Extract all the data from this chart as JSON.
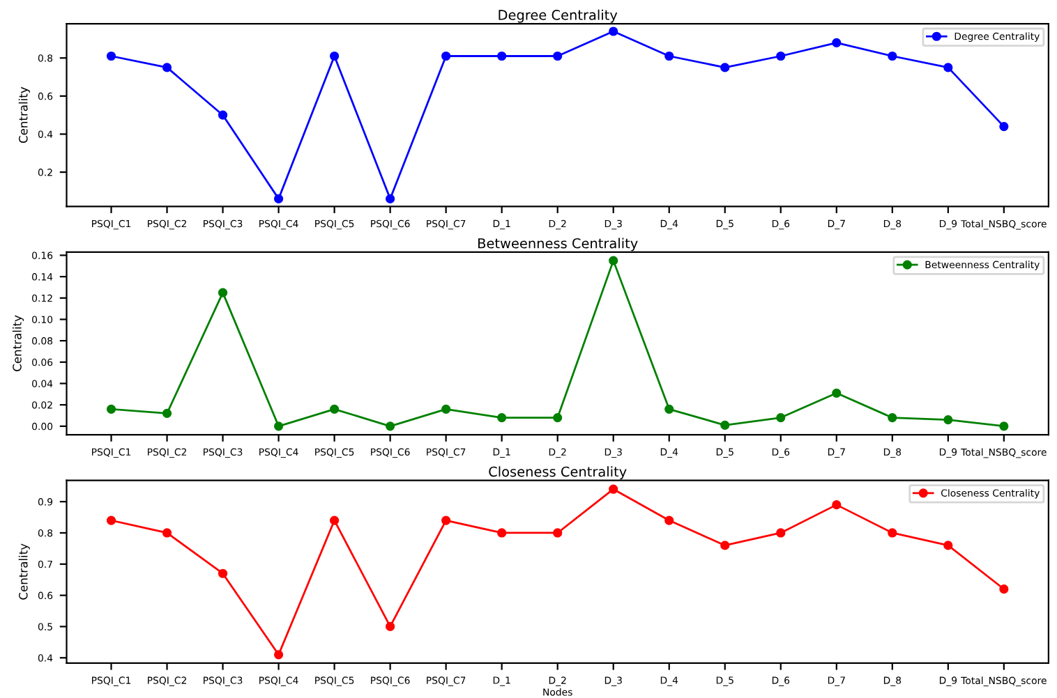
{
  "chart_data": [
    {
      "type": "line",
      "title": "Degree Centrality",
      "ylabel": "Centrality",
      "categories": [
        "PSQI_C1",
        "PSQI_C2",
        "PSQI_C3",
        "PSQI_C4",
        "PSQI_C5",
        "PSQI_C6",
        "PSQI_C7",
        "D_1",
        "D_2",
        "D_3",
        "D_4",
        "D_5",
        "D_6",
        "D_7",
        "D_8",
        "D_9",
        "Total_NSBQ_score"
      ],
      "series": [
        {
          "name": "Degree Centrality",
          "color": "#0000ff",
          "values": [
            0.81,
            0.75,
            0.5,
            0.06,
            0.81,
            0.06,
            0.81,
            0.81,
            0.81,
            0.94,
            0.81,
            0.75,
            0.81,
            0.88,
            0.81,
            0.75,
            0.44
          ]
        }
      ],
      "ylim": [
        0.02,
        0.98
      ],
      "yticks": [
        0.2,
        0.4,
        0.6,
        0.8
      ],
      "marker": "circle",
      "legend": "top right",
      "grid": false
    },
    {
      "type": "line",
      "title": "Betweenness Centrality",
      "ylabel": "Centrality",
      "categories": [
        "PSQI_C1",
        "PSQI_C2",
        "PSQI_C3",
        "PSQI_C4",
        "PSQI_C5",
        "PSQI_C6",
        "PSQI_C7",
        "D_1",
        "D_2",
        "D_3",
        "D_4",
        "D_5",
        "D_6",
        "D_7",
        "D_8",
        "D_9",
        "Total_NSBQ_score"
      ],
      "series": [
        {
          "name": "Betweenness Centrality",
          "color": "#008000",
          "values": [
            0.016,
            0.012,
            0.125,
            0.0,
            0.016,
            0.0,
            0.016,
            0.008,
            0.008,
            0.155,
            0.016,
            0.001,
            0.008,
            0.031,
            0.008,
            0.006,
            0.0
          ]
        }
      ],
      "ylim": [
        -0.008,
        0.163
      ],
      "yticks": [
        {
          "value": 0,
          "label": "0.00"
        },
        0.02,
        0.04,
        0.06,
        0.08,
        {
          "value": 0.1,
          "label": "0.10"
        },
        0.12,
        0.14,
        0.16
      ],
      "marker": "circle",
      "legend": "top right",
      "grid": false
    },
    {
      "type": "line",
      "title": "Closeness Centrality",
      "xlabel": "Nodes",
      "ylabel": "Centrality",
      "categories": [
        "PSQI_C1",
        "PSQI_C2",
        "PSQI_C3",
        "PSQI_C4",
        "PSQI_C5",
        "PSQI_C6",
        "PSQI_C7",
        "D_1",
        "D_2",
        "D_3",
        "D_4",
        "D_5",
        "D_6",
        "D_7",
        "D_8",
        "D_9",
        "Total_NSBQ_score"
      ],
      "series": [
        {
          "name": "Closeness Centrality",
          "color": "#ff0000",
          "values": [
            0.84,
            0.8,
            0.67,
            0.41,
            0.84,
            0.5,
            0.84,
            0.8,
            0.8,
            0.94,
            0.84,
            0.76,
            0.8,
            0.89,
            0.8,
            0.76,
            0.62
          ]
        }
      ],
      "ylim": [
        0.383,
        0.968
      ],
      "yticks": [
        0.4,
        0.5,
        0.6,
        0.7,
        0.8,
        0.9
      ],
      "marker": "circle",
      "legend": "top right",
      "grid": false
    }
  ]
}
